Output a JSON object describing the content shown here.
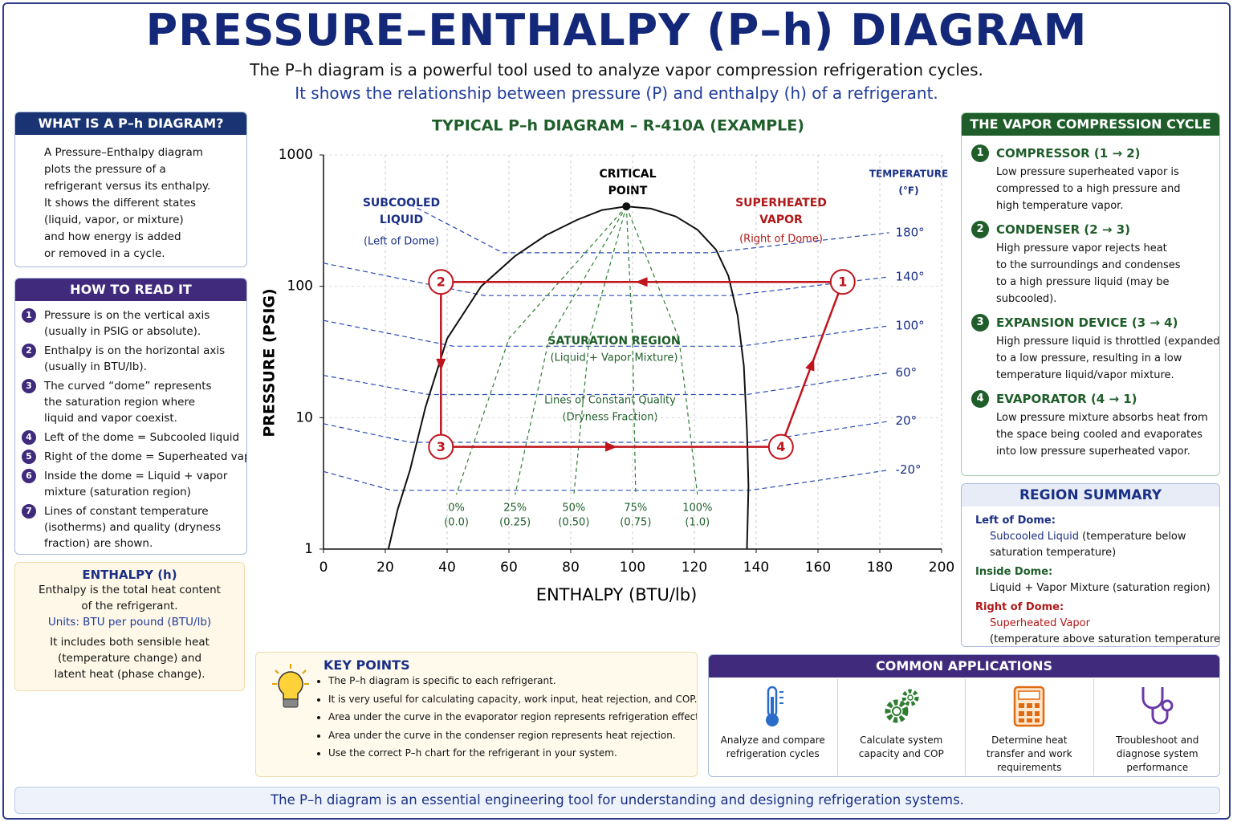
{
  "header": {
    "title": "PRESSURE–ENTHALPY (P–h) DIAGRAM",
    "subtitle": "The P–h diagram is a powerful tool used to analyze vapor compression refrigeration cycles.",
    "subtitle2": "It shows the relationship between pressure (P) and enthalpy (h) of a refrigerant."
  },
  "what_is": {
    "title": "WHAT IS A P–h DIAGRAM?",
    "lines": [
      "A Pressure–Enthalpy diagram",
      "plots the pressure of a",
      "refrigerant versus its enthalpy.",
      "It shows the different states",
      "(liquid, vapor, or mixture)",
      "and how energy is added",
      "or removed in a cycle."
    ]
  },
  "how_to_read": {
    "title": "HOW TO READ IT",
    "items": [
      {
        "number": "1",
        "lines": [
          "Pressure is on the vertical axis",
          "(usually in PSIG or absolute)."
        ]
      },
      {
        "number": "2",
        "lines": [
          "Enthalpy is on the horizontal axis",
          "(usually in BTU/lb)."
        ]
      },
      {
        "number": "3",
        "lines": [
          "The curved “dome” represents",
          "the saturation region where",
          "liquid and vapor coexist."
        ]
      },
      {
        "number": "4",
        "lines": [
          "Left of the dome = Subcooled liquid"
        ]
      },
      {
        "number": "5",
        "lines": [
          "Right of the dome = Superheated vapor"
        ]
      },
      {
        "number": "6",
        "lines": [
          "Inside the dome = Liquid + vapor",
          "mixture (saturation region)"
        ]
      },
      {
        "number": "7",
        "lines": [
          "Lines of constant temperature",
          "(isotherms) and quality (dryness",
          "fraction) are shown."
        ]
      }
    ]
  },
  "enthalpy": {
    "title": "ENTHALPY (h)",
    "lines": [
      "Enthalpy is the total heat content",
      "of the refrigerant."
    ],
    "units": "Units: BTU per pound (BTU/lb)",
    "lines2": [
      "It includes both sensible heat",
      "(temperature change) and",
      "latent heat (phase change)."
    ]
  },
  "chart_data": {
    "type": "line",
    "title": "TYPICAL P–h DIAGRAM – R-410A (EXAMPLE)",
    "xlabel": "ENTHALPY (BTU/lb)",
    "ylabel": "PRESSURE (PSIG)",
    "xlim": [
      0,
      200
    ],
    "xticks": [
      0,
      20,
      40,
      60,
      80,
      100,
      120,
      140,
      160,
      180,
      200
    ],
    "ylim": [
      1,
      1000
    ],
    "yticks": [
      1,
      10,
      100,
      1000
    ],
    "log_y": true,
    "grid": true,
    "series": [
      {
        "color": "#111111",
        "x": [
          21,
          24,
          28,
          33,
          40,
          51,
          62,
          72,
          82,
          90,
          98,
          106,
          114,
          121,
          127,
          131,
          134,
          136,
          137,
          137.5,
          137
        ],
        "values": [
          1,
          2,
          4,
          12,
          40,
          100,
          170,
          245,
          320,
          380,
          406,
          390,
          340,
          270,
          190,
          120,
          60,
          25,
          8,
          3,
          1
        ]
      },
      {
        "color": "#c0141c",
        "closed": true,
        "x": [
          168,
          38,
          38,
          148
        ],
        "values": [
          108,
          108,
          6,
          6
        ],
        "point_labels": [
          "1",
          "2",
          "3",
          "4"
        ]
      }
    ],
    "isotherms": {
      "title": [
        "TEMPERATURE",
        "(°F)"
      ],
      "color": "#2a4bb5",
      "lines": [
        {
          "label": "180°",
          "x": [
            28,
            58,
            125,
            183
          ],
          "values": [
            420,
            180,
            180,
            256
          ]
        },
        {
          "label": "140°",
          "x": [
            0,
            52,
            132,
            183
          ],
          "values": [
            150,
            85,
            85,
            118
          ]
        },
        {
          "label": "100°",
          "x": [
            0,
            42,
            135,
            183
          ],
          "values": [
            55,
            35,
            35,
            50
          ]
        },
        {
          "label": "60°",
          "x": [
            0,
            34,
            137,
            183
          ],
          "values": [
            21,
            15,
            15,
            22
          ]
        },
        {
          "label": "20°",
          "x": [
            0,
            28,
            138,
            183
          ],
          "values": [
            9,
            6.5,
            6.5,
            9.4
          ]
        },
        {
          "label": "-20°",
          "x": [
            0,
            22,
            138,
            183
          ],
          "values": [
            3.9,
            2.8,
            2.8,
            4
          ]
        }
      ]
    },
    "quality_lines": {
      "color": "#2e7d32",
      "lines": [
        {
          "label": "0%",
          "fraction": "(0.0)",
          "x": [
            98,
            60,
            43
          ],
          "values": [
            406,
            40,
            2.6
          ]
        },
        {
          "label": "25%",
          "fraction": "(0.25)",
          "x": [
            98,
            73,
            62
          ],
          "values": [
            406,
            40,
            2.6
          ]
        },
        {
          "label": "50%",
          "fraction": "(0.50)",
          "x": [
            98,
            86,
            81
          ],
          "values": [
            406,
            40,
            2.6
          ]
        },
        {
          "label": "75%",
          "fraction": "(0.75)",
          "x": [
            98,
            100,
            101
          ],
          "values": [
            406,
            40,
            2.6
          ]
        },
        {
          "label": "100%",
          "fraction": "(1.0)",
          "x": [
            98,
            115,
            121
          ],
          "values": [
            406,
            40,
            2.6
          ]
        }
      ]
    },
    "annotations": {
      "critical_point": [
        "CRITICAL",
        "POINT"
      ],
      "subcooled": [
        "SUBCOOLED",
        "LIQUID"
      ],
      "subcooled_note": "(Left of Dome)",
      "superheated": [
        "SUPERHEATED",
        "VAPOR"
      ],
      "superheated_note": "(Right of Dome)",
      "saturation": "SATURATION REGION",
      "saturation_note": "(Liquid + Vapor Mixture)",
      "quality": "Lines of Constant Quality",
      "quality_note": "(Dryness Fraction)"
    }
  },
  "cycle": {
    "title": "THE VAPOR COMPRESSION CYCLE",
    "steps": [
      {
        "number": "1",
        "title": "COMPRESSOR (1 → 2)",
        "lines": [
          "Low pressure superheated vapor is",
          "compressed to a high pressure and",
          "high temperature vapor."
        ]
      },
      {
        "number": "2",
        "title": "CONDENSER (2 → 3)",
        "lines": [
          "High pressure vapor rejects heat",
          "to the surroundings and condenses",
          "to a high pressure liquid (may be",
          "subcooled)."
        ]
      },
      {
        "number": "3",
        "title": "EXPANSION DEVICE (3 → 4)",
        "lines": [
          "High pressure liquid is throttled (expanded)",
          "to a low pressure, resulting in a low",
          "temperature liquid/vapor mixture."
        ]
      },
      {
        "number": "4",
        "title": "EVAPORATOR (4 → 1)",
        "lines": [
          "Low pressure mixture absorbs heat from",
          "the space being cooled and evaporates",
          "into low pressure superheated vapor."
        ]
      }
    ]
  },
  "region_summary": {
    "title": "REGION SUMMARY",
    "left": {
      "heading": "Left of Dome:",
      "term": "Subcooled Liquid",
      "lines": [
        "(temperature below",
        "saturation temperature)"
      ]
    },
    "inside": {
      "heading": "Inside Dome:",
      "term": "Liquid + Vapor Mixture",
      "lines": [
        "(saturation region)"
      ]
    },
    "right": {
      "heading": "Right of Dome:",
      "term": "Superheated Vapor",
      "lines": [
        "(temperature above saturation temperature)"
      ]
    }
  },
  "key_points": {
    "title": "KEY POINTS",
    "items": [
      "The P–h diagram is specific to each refrigerant.",
      "It is very useful for calculating capacity, work input, heat rejection, and COP.",
      "Area under the curve in the evaporator region represents refrigeration effect.",
      "Area under the curve in the condenser region represents heat rejection.",
      "Use the correct P–h chart for the refrigerant in your system."
    ]
  },
  "applications": {
    "title": "COMMON APPLICATIONS",
    "items": [
      {
        "lines": [
          "Analyze and compare",
          "refrigeration cycles"
        ]
      },
      {
        "lines": [
          "Calculate system",
          "capacity and COP"
        ]
      },
      {
        "lines": [
          "Determine heat",
          "transfer and work",
          "requirements"
        ]
      },
      {
        "lines": [
          "Troubleshoot and",
          "diagnose system",
          "performance"
        ]
      }
    ]
  },
  "footer": "The P–h diagram is an essential engineering tool for understanding and designing refrigeration systems."
}
